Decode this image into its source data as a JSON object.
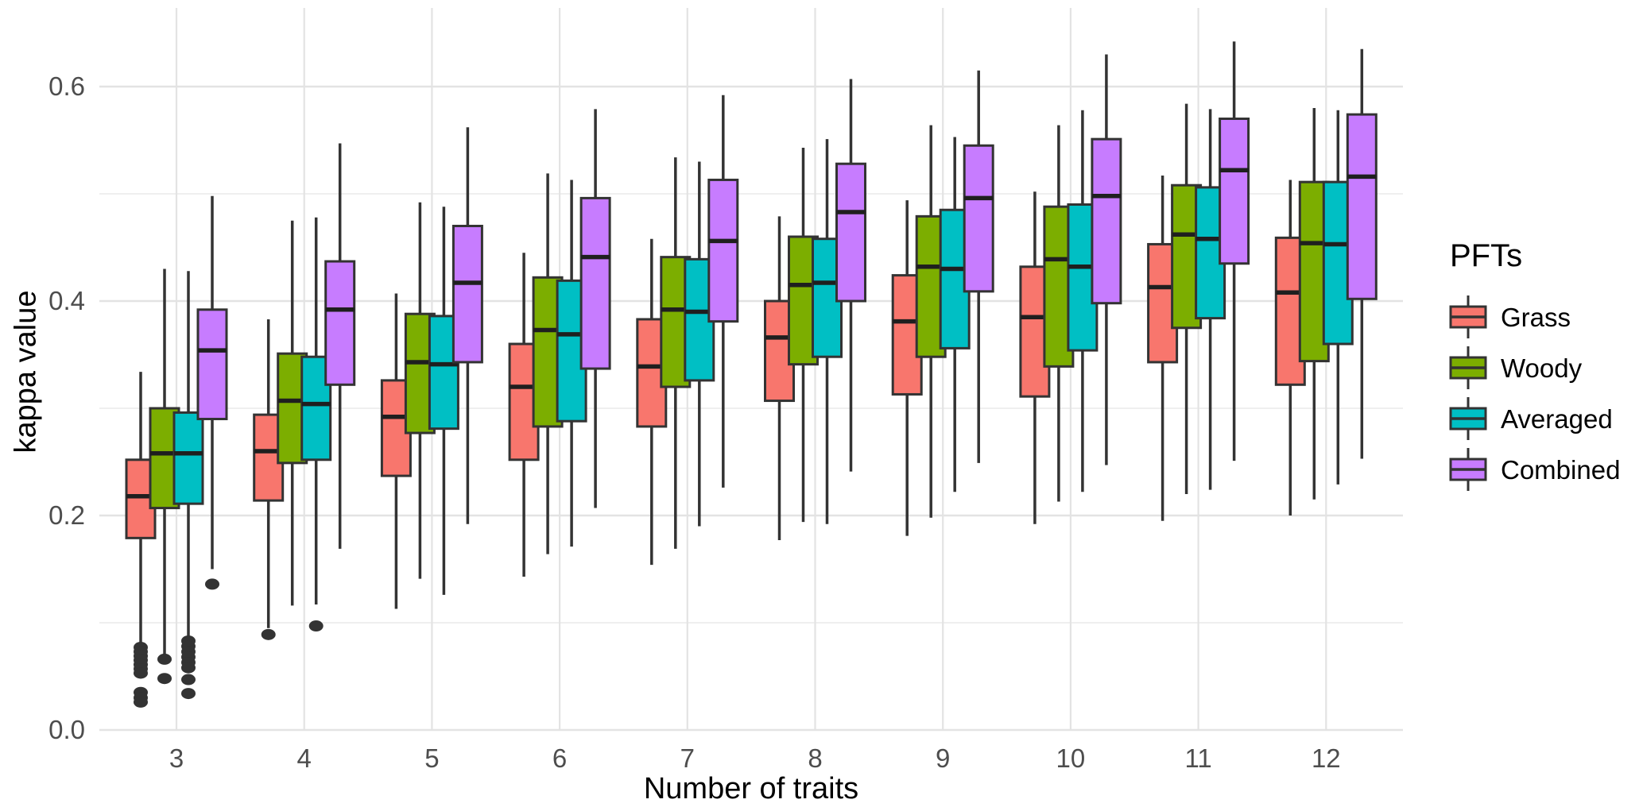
{
  "chart_data": {
    "type": "boxplot",
    "title": "",
    "xlabel": "Number of traits",
    "ylabel": "kappa value",
    "categories": [
      "3",
      "4",
      "5",
      "6",
      "7",
      "8",
      "9",
      "10",
      "11",
      "12"
    ],
    "y_ticks": [
      0.0,
      0.2,
      0.4,
      0.6
    ],
    "y_tick_labels": [
      "0.0",
      "0.2",
      "0.4",
      "0.6"
    ],
    "y_minor_gridlines": [
      0.1,
      0.3,
      0.5
    ],
    "ylim": [
      0,
      0.673
    ],
    "grid": "on",
    "legend": {
      "title": "PFTs",
      "position": "right"
    },
    "style": {
      "box_border_color": "#333333",
      "median_color": "#1f1f1f",
      "gridline_major_color": "#e3e3e3",
      "gridline_minor_color": "#ededed",
      "tick_label_color": "#4d4d4d",
      "outlier_color": "#333333"
    },
    "series": [
      {
        "name": "Grass",
        "color": "#F8766D",
        "boxes": [
          {
            "low": 0.079,
            "q1": 0.179,
            "median": 0.218,
            "q3": 0.252,
            "high": 0.334,
            "outliers": [
              0.077,
              0.073,
              0.069,
              0.065,
              0.061,
              0.057,
              0.053,
              0.035,
              0.03,
              0.026
            ]
          },
          {
            "low": 0.095,
            "q1": 0.214,
            "median": 0.26,
            "q3": 0.294,
            "high": 0.383,
            "outliers": [
              0.089
            ]
          },
          {
            "low": 0.113,
            "q1": 0.237,
            "median": 0.292,
            "q3": 0.326,
            "high": 0.407,
            "outliers": []
          },
          {
            "low": 0.143,
            "q1": 0.252,
            "median": 0.32,
            "q3": 0.36,
            "high": 0.445,
            "outliers": []
          },
          {
            "low": 0.154,
            "q1": 0.283,
            "median": 0.339,
            "q3": 0.383,
            "high": 0.458,
            "outliers": []
          },
          {
            "low": 0.177,
            "q1": 0.307,
            "median": 0.366,
            "q3": 0.4,
            "high": 0.479,
            "outliers": []
          },
          {
            "low": 0.181,
            "q1": 0.313,
            "median": 0.381,
            "q3": 0.424,
            "high": 0.494,
            "outliers": []
          },
          {
            "low": 0.192,
            "q1": 0.311,
            "median": 0.385,
            "q3": 0.432,
            "high": 0.502,
            "outliers": []
          },
          {
            "low": 0.195,
            "q1": 0.343,
            "median": 0.413,
            "q3": 0.453,
            "high": 0.517,
            "outliers": []
          },
          {
            "low": 0.2,
            "q1": 0.322,
            "median": 0.408,
            "q3": 0.459,
            "high": 0.513,
            "outliers": []
          }
        ]
      },
      {
        "name": "Woody",
        "color": "#7CAE00",
        "boxes": [
          {
            "low": 0.067,
            "q1": 0.207,
            "median": 0.258,
            "q3": 0.3,
            "high": 0.43,
            "outliers": [
              0.066,
              0.048
            ]
          },
          {
            "low": 0.116,
            "q1": 0.249,
            "median": 0.307,
            "q3": 0.351,
            "high": 0.475,
            "outliers": []
          },
          {
            "low": 0.141,
            "q1": 0.277,
            "median": 0.343,
            "q3": 0.388,
            "high": 0.492,
            "outliers": []
          },
          {
            "low": 0.164,
            "q1": 0.283,
            "median": 0.373,
            "q3": 0.422,
            "high": 0.519,
            "outliers": []
          },
          {
            "low": 0.169,
            "q1": 0.32,
            "median": 0.392,
            "q3": 0.441,
            "high": 0.534,
            "outliers": []
          },
          {
            "low": 0.194,
            "q1": 0.341,
            "median": 0.415,
            "q3": 0.46,
            "high": 0.543,
            "outliers": []
          },
          {
            "low": 0.198,
            "q1": 0.348,
            "median": 0.432,
            "q3": 0.479,
            "high": 0.564,
            "outliers": []
          },
          {
            "low": 0.213,
            "q1": 0.339,
            "median": 0.439,
            "q3": 0.488,
            "high": 0.564,
            "outliers": []
          },
          {
            "low": 0.22,
            "q1": 0.375,
            "median": 0.462,
            "q3": 0.508,
            "high": 0.584,
            "outliers": []
          },
          {
            "low": 0.215,
            "q1": 0.344,
            "median": 0.454,
            "q3": 0.511,
            "high": 0.58,
            "outliers": []
          }
        ]
      },
      {
        "name": "Averaged",
        "color": "#00BFC4",
        "boxes": [
          {
            "low": 0.086,
            "q1": 0.211,
            "median": 0.258,
            "q3": 0.296,
            "high": 0.428,
            "outliers": [
              0.083,
              0.078,
              0.073,
              0.068,
              0.063,
              0.058,
              0.047,
              0.034
            ]
          },
          {
            "low": 0.117,
            "q1": 0.252,
            "median": 0.304,
            "q3": 0.348,
            "high": 0.478,
            "outliers": [
              0.097
            ]
          },
          {
            "low": 0.126,
            "q1": 0.281,
            "median": 0.341,
            "q3": 0.386,
            "high": 0.488,
            "outliers": []
          },
          {
            "low": 0.171,
            "q1": 0.288,
            "median": 0.369,
            "q3": 0.419,
            "high": 0.513,
            "outliers": []
          },
          {
            "low": 0.19,
            "q1": 0.326,
            "median": 0.39,
            "q3": 0.439,
            "high": 0.53,
            "outliers": []
          },
          {
            "low": 0.192,
            "q1": 0.348,
            "median": 0.417,
            "q3": 0.458,
            "high": 0.551,
            "outliers": []
          },
          {
            "low": 0.222,
            "q1": 0.356,
            "median": 0.43,
            "q3": 0.485,
            "high": 0.553,
            "outliers": []
          },
          {
            "low": 0.222,
            "q1": 0.354,
            "median": 0.432,
            "q3": 0.49,
            "high": 0.578,
            "outliers": []
          },
          {
            "low": 0.224,
            "q1": 0.384,
            "median": 0.458,
            "q3": 0.506,
            "high": 0.579,
            "outliers": []
          },
          {
            "low": 0.229,
            "q1": 0.36,
            "median": 0.453,
            "q3": 0.511,
            "high": 0.578,
            "outliers": []
          }
        ]
      },
      {
        "name": "Combined",
        "color": "#C77CFF",
        "boxes": [
          {
            "low": 0.15,
            "q1": 0.29,
            "median": 0.354,
            "q3": 0.392,
            "high": 0.498,
            "outliers": [
              0.136
            ]
          },
          {
            "low": 0.169,
            "q1": 0.322,
            "median": 0.392,
            "q3": 0.437,
            "high": 0.547,
            "outliers": []
          },
          {
            "low": 0.192,
            "q1": 0.343,
            "median": 0.417,
            "q3": 0.47,
            "high": 0.562,
            "outliers": []
          },
          {
            "low": 0.207,
            "q1": 0.337,
            "median": 0.441,
            "q3": 0.496,
            "high": 0.579,
            "outliers": []
          },
          {
            "low": 0.226,
            "q1": 0.381,
            "median": 0.456,
            "q3": 0.513,
            "high": 0.592,
            "outliers": []
          },
          {
            "low": 0.241,
            "q1": 0.4,
            "median": 0.483,
            "q3": 0.528,
            "high": 0.607,
            "outliers": []
          },
          {
            "low": 0.249,
            "q1": 0.409,
            "median": 0.496,
            "q3": 0.545,
            "high": 0.615,
            "outliers": []
          },
          {
            "low": 0.247,
            "q1": 0.398,
            "median": 0.498,
            "q3": 0.551,
            "high": 0.63,
            "outliers": []
          },
          {
            "low": 0.251,
            "q1": 0.435,
            "median": 0.522,
            "q3": 0.57,
            "high": 0.642,
            "outliers": []
          },
          {
            "low": 0.253,
            "q1": 0.402,
            "median": 0.516,
            "q3": 0.574,
            "high": 0.635,
            "outliers": []
          }
        ]
      }
    ]
  }
}
